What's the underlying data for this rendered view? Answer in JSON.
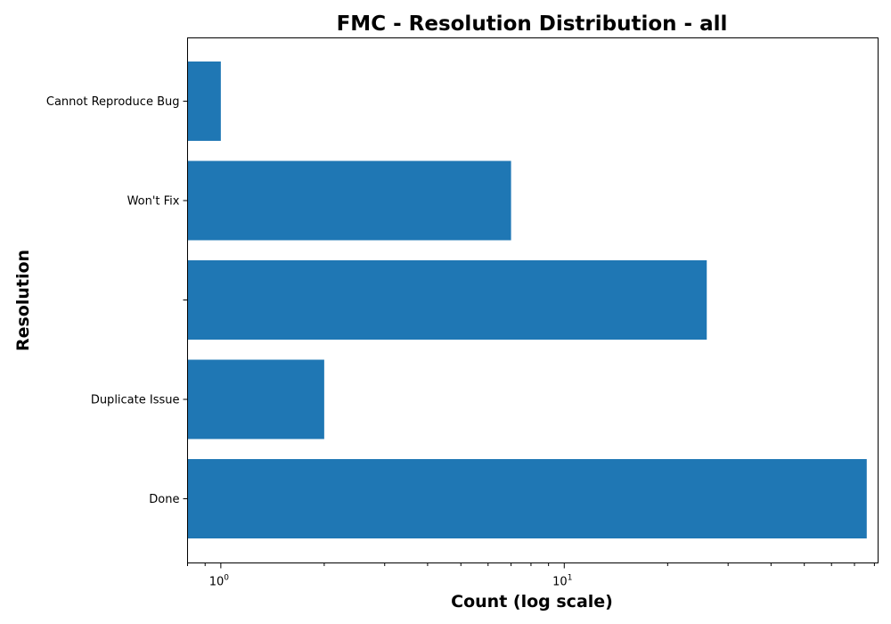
{
  "chart_data": {
    "type": "bar",
    "orientation": "horizontal",
    "title": "FMC - Resolution Distribution - all",
    "xlabel": "Count (log scale)",
    "ylabel": "Resolution",
    "xscale": "log",
    "xlim": [
      0.8,
      82
    ],
    "categories": [
      "Done",
      "Duplicate Issue",
      "",
      "Won't Fix",
      "Cannot Reproduce Bug"
    ],
    "values": [
      76,
      2,
      26,
      7,
      1
    ],
    "x_major_ticks": [
      {
        "value": 1,
        "base": "10",
        "exponent": "0"
      },
      {
        "value": 10,
        "base": "10",
        "exponent": "1"
      }
    ],
    "bar_color": "#1f77b4",
    "grid": false,
    "legend": "none"
  }
}
